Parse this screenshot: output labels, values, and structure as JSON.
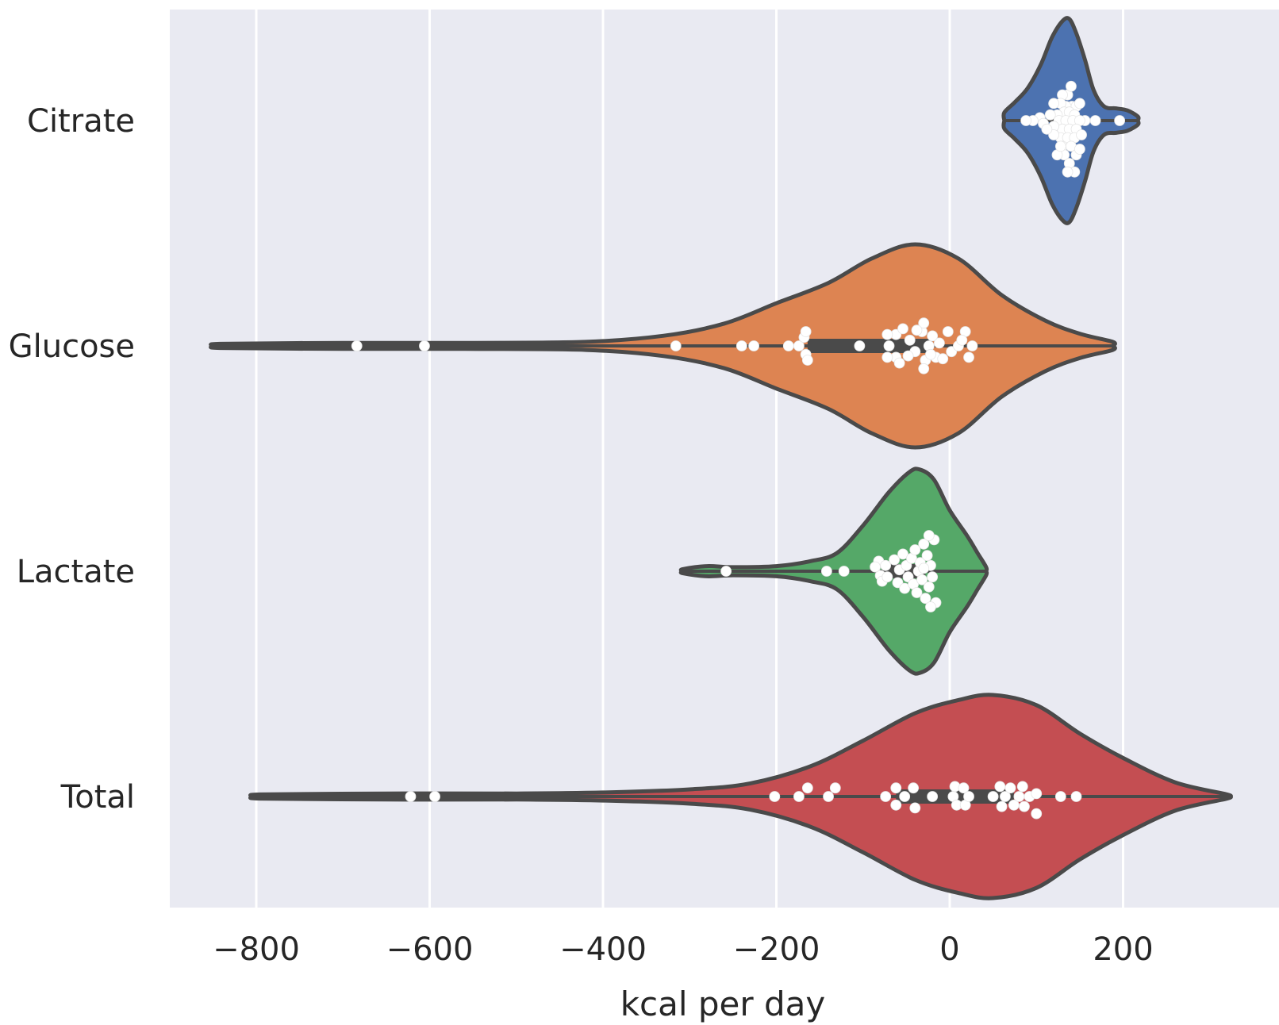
{
  "chart_data": {
    "type": "violin",
    "orientation": "horizontal",
    "title": "",
    "xlabel": "kcal per day",
    "ylabel": "",
    "xlim": [
      -900,
      380
    ],
    "xticks": [
      -800,
      -600,
      -400,
      -200,
      0,
      200
    ],
    "xtick_labels": [
      "−800",
      "−600",
      "−400",
      "−200",
      "0",
      "200"
    ],
    "grid": true,
    "background": "#e9eaf2",
    "grid_color": "#ffffff",
    "outline_color": "#4a4a4a",
    "point_color": "#ffffff",
    "categories": [
      "Citrate",
      "Glucose",
      "Lactate",
      "Total"
    ],
    "series": [
      {
        "name": "Citrate",
        "color": "#4c72b0",
        "range": [
          63,
          217
        ],
        "profile": [
          [
            63,
            0.08
          ],
          [
            75,
            0.18
          ],
          [
            90,
            0.32
          ],
          [
            105,
            0.55
          ],
          [
            118,
            0.82
          ],
          [
            130,
            0.98
          ],
          [
            138,
            1.0
          ],
          [
            146,
            0.86
          ],
          [
            156,
            0.6
          ],
          [
            166,
            0.3
          ],
          [
            178,
            0.14
          ],
          [
            192,
            0.12
          ],
          [
            205,
            0.1
          ],
          [
            217,
            0.04
          ]
        ],
        "points": [
          [
            145,
            0
          ],
          [
            141,
            0.5
          ],
          [
            136,
            0.9
          ],
          [
            134,
            0.5
          ],
          [
            146,
            0.5
          ],
          [
            130,
            0.9
          ],
          [
            140,
            1.2
          ],
          [
            128,
            0.6
          ],
          [
            150,
            0.6
          ],
          [
            120,
            0.6
          ],
          [
            132,
            0.3
          ],
          [
            138,
            0.3
          ],
          [
            144,
            0.2
          ],
          [
            124,
            0.2
          ],
          [
            116,
            0.2
          ],
          [
            104,
            0.1
          ],
          [
            96,
            0
          ],
          [
            88,
            0
          ],
          [
            156,
            0
          ],
          [
            168,
            0
          ],
          [
            196,
            0
          ],
          [
            126,
            0
          ],
          [
            134,
            0
          ],
          [
            142,
            0
          ],
          [
            150,
            0
          ],
          [
            130,
            -0.3
          ],
          [
            138,
            -0.3
          ],
          [
            146,
            -0.3
          ],
          [
            120,
            -0.2
          ],
          [
            108,
            -0.1
          ],
          [
            128,
            -0.6
          ],
          [
            136,
            -0.6
          ],
          [
            144,
            -0.6
          ],
          [
            152,
            -0.5
          ],
          [
            130,
            -0.9
          ],
          [
            140,
            -0.9
          ],
          [
            146,
            -1.2
          ],
          [
            132,
            -1.2
          ],
          [
            124,
            -1.2
          ],
          [
            138,
            -1.5
          ],
          [
            144,
            -1.8
          ],
          [
            128,
            -0.9
          ],
          [
            120,
            -0.5
          ],
          [
            112,
            -0.3
          ],
          [
            150,
            -1.0
          ],
          [
            136,
            -1.8
          ]
        ]
      },
      {
        "name": "Glucose",
        "color": "#dd8452",
        "range": [
          -842,
          188
        ],
        "profile": [
          [
            -842,
            0.02
          ],
          [
            -700,
            0.03
          ],
          [
            -560,
            0.03
          ],
          [
            -420,
            0.04
          ],
          [
            -330,
            0.1
          ],
          [
            -260,
            0.22
          ],
          [
            -200,
            0.42
          ],
          [
            -140,
            0.62
          ],
          [
            -90,
            0.86
          ],
          [
            -40,
            1.0
          ],
          [
            10,
            0.86
          ],
          [
            60,
            0.5
          ],
          [
            110,
            0.25
          ],
          [
            150,
            0.12
          ],
          [
            188,
            0.04
          ]
        ],
        "points": [
          [
            -684,
            0
          ],
          [
            -606,
            0
          ],
          [
            -316,
            0
          ],
          [
            -240,
            0
          ],
          [
            -226,
            0
          ],
          [
            -186,
            0
          ],
          [
            -174,
            0
          ],
          [
            -166,
            -0.3
          ],
          [
            -168,
            0.3
          ],
          [
            -164,
            -0.5
          ],
          [
            -166,
            0.5
          ],
          [
            -104,
            0
          ],
          [
            -70,
            0
          ],
          [
            -62,
            0.4
          ],
          [
            -72,
            0.4
          ],
          [
            -54,
            0.6
          ],
          [
            -62,
            -0.4
          ],
          [
            -72,
            -0.4
          ],
          [
            -58,
            -0.6
          ],
          [
            -46,
            0.2
          ],
          [
            -40,
            -0.2
          ],
          [
            -32,
            0.5
          ],
          [
            -28,
            -0.5
          ],
          [
            -24,
            0
          ],
          [
            -16,
            -0.4
          ],
          [
            -30,
            0.8
          ],
          [
            -30,
            -0.8
          ],
          [
            -22,
            -0.3
          ],
          [
            -12,
            0.1
          ],
          [
            -2,
            0.5
          ],
          [
            2,
            -0.2
          ],
          [
            10,
            0
          ],
          [
            18,
            0.5
          ],
          [
            22,
            -0.4
          ],
          [
            26,
            0
          ],
          [
            -38,
            0.55
          ],
          [
            -48,
            -0.35
          ],
          [
            -20,
            0.35
          ],
          [
            -8,
            -0.45
          ],
          [
            14,
            0.2
          ]
        ]
      },
      {
        "name": "Lactate",
        "color": "#55a868",
        "range": [
          -308,
          42
        ],
        "profile": [
          [
            -308,
            0.02
          ],
          [
            -280,
            0.05
          ],
          [
            -250,
            0.04
          ],
          [
            -200,
            0.05
          ],
          [
            -160,
            0.1
          ],
          [
            -130,
            0.18
          ],
          [
            -100,
            0.45
          ],
          [
            -70,
            0.78
          ],
          [
            -46,
            0.98
          ],
          [
            -34,
            1.0
          ],
          [
            -18,
            0.9
          ],
          [
            0,
            0.6
          ],
          [
            20,
            0.35
          ],
          [
            32,
            0.18
          ],
          [
            42,
            0.04
          ]
        ],
        "points": [
          [
            -258,
            0
          ],
          [
            -142,
            0
          ],
          [
            -122,
            0
          ],
          [
            -82,
            0.35
          ],
          [
            -80,
            -0.15
          ],
          [
            -86,
            0.15
          ],
          [
            -78,
            -0.35
          ],
          [
            -74,
            0.2
          ],
          [
            -72,
            -0.2
          ],
          [
            -64,
            0.4
          ],
          [
            -60,
            -0.4
          ],
          [
            -58,
            0.05
          ],
          [
            -54,
            0.6
          ],
          [
            -52,
            -0.6
          ],
          [
            -50,
            0.2
          ],
          [
            -48,
            -0.2
          ],
          [
            -44,
            0.45
          ],
          [
            -42,
            -0.45
          ],
          [
            -40,
            0.75
          ],
          [
            -38,
            -0.75
          ],
          [
            -36,
            0
          ],
          [
            -34,
            0.3
          ],
          [
            -32,
            -0.3
          ],
          [
            -30,
            0.95
          ],
          [
            -28,
            -0.95
          ],
          [
            -26,
            0.55
          ],
          [
            -24,
            -0.55
          ],
          [
            -22,
            0.2
          ],
          [
            -20,
            -0.2
          ],
          [
            -18,
            1.1
          ],
          [
            -16,
            -1.1
          ],
          [
            -24,
            1.25
          ],
          [
            -22,
            -1.25
          ],
          [
            -30,
            0.1
          ]
        ]
      },
      {
        "name": "Total",
        "color": "#c44e52",
        "range": [
          -796,
          320
        ],
        "profile": [
          [
            -796,
            0.02
          ],
          [
            -650,
            0.03
          ],
          [
            -500,
            0.03
          ],
          [
            -400,
            0.04
          ],
          [
            -300,
            0.07
          ],
          [
            -230,
            0.13
          ],
          [
            -160,
            0.3
          ],
          [
            -100,
            0.55
          ],
          [
            -40,
            0.82
          ],
          [
            10,
            0.95
          ],
          [
            50,
            1.0
          ],
          [
            100,
            0.9
          ],
          [
            150,
            0.62
          ],
          [
            200,
            0.38
          ],
          [
            260,
            0.14
          ],
          [
            320,
            0.02
          ]
        ],
        "points": [
          [
            -622,
            0
          ],
          [
            -594,
            0
          ],
          [
            -202,
            0
          ],
          [
            -174,
            0
          ],
          [
            -164,
            0.3
          ],
          [
            -140,
            0
          ],
          [
            -132,
            0.3
          ],
          [
            -74,
            0
          ],
          [
            -62,
            0.3
          ],
          [
            -62,
            -0.3
          ],
          [
            -52,
            0
          ],
          [
            -42,
            0.3
          ],
          [
            -40,
            -0.4
          ],
          [
            -20,
            0
          ],
          [
            4,
            0
          ],
          [
            6,
            0.35
          ],
          [
            8,
            -0.3
          ],
          [
            16,
            0.3
          ],
          [
            18,
            -0.3
          ],
          [
            22,
            0
          ],
          [
            50,
            0
          ],
          [
            58,
            0.35
          ],
          [
            60,
            -0.35
          ],
          [
            64,
            0
          ],
          [
            70,
            0.3
          ],
          [
            74,
            -0.3
          ],
          [
            80,
            0
          ],
          [
            84,
            0.35
          ],
          [
            86,
            -0.35
          ],
          [
            92,
            0
          ],
          [
            100,
            -0.6
          ],
          [
            100,
            0.1
          ],
          [
            128,
            0
          ],
          [
            146,
            0
          ]
        ]
      }
    ]
  }
}
